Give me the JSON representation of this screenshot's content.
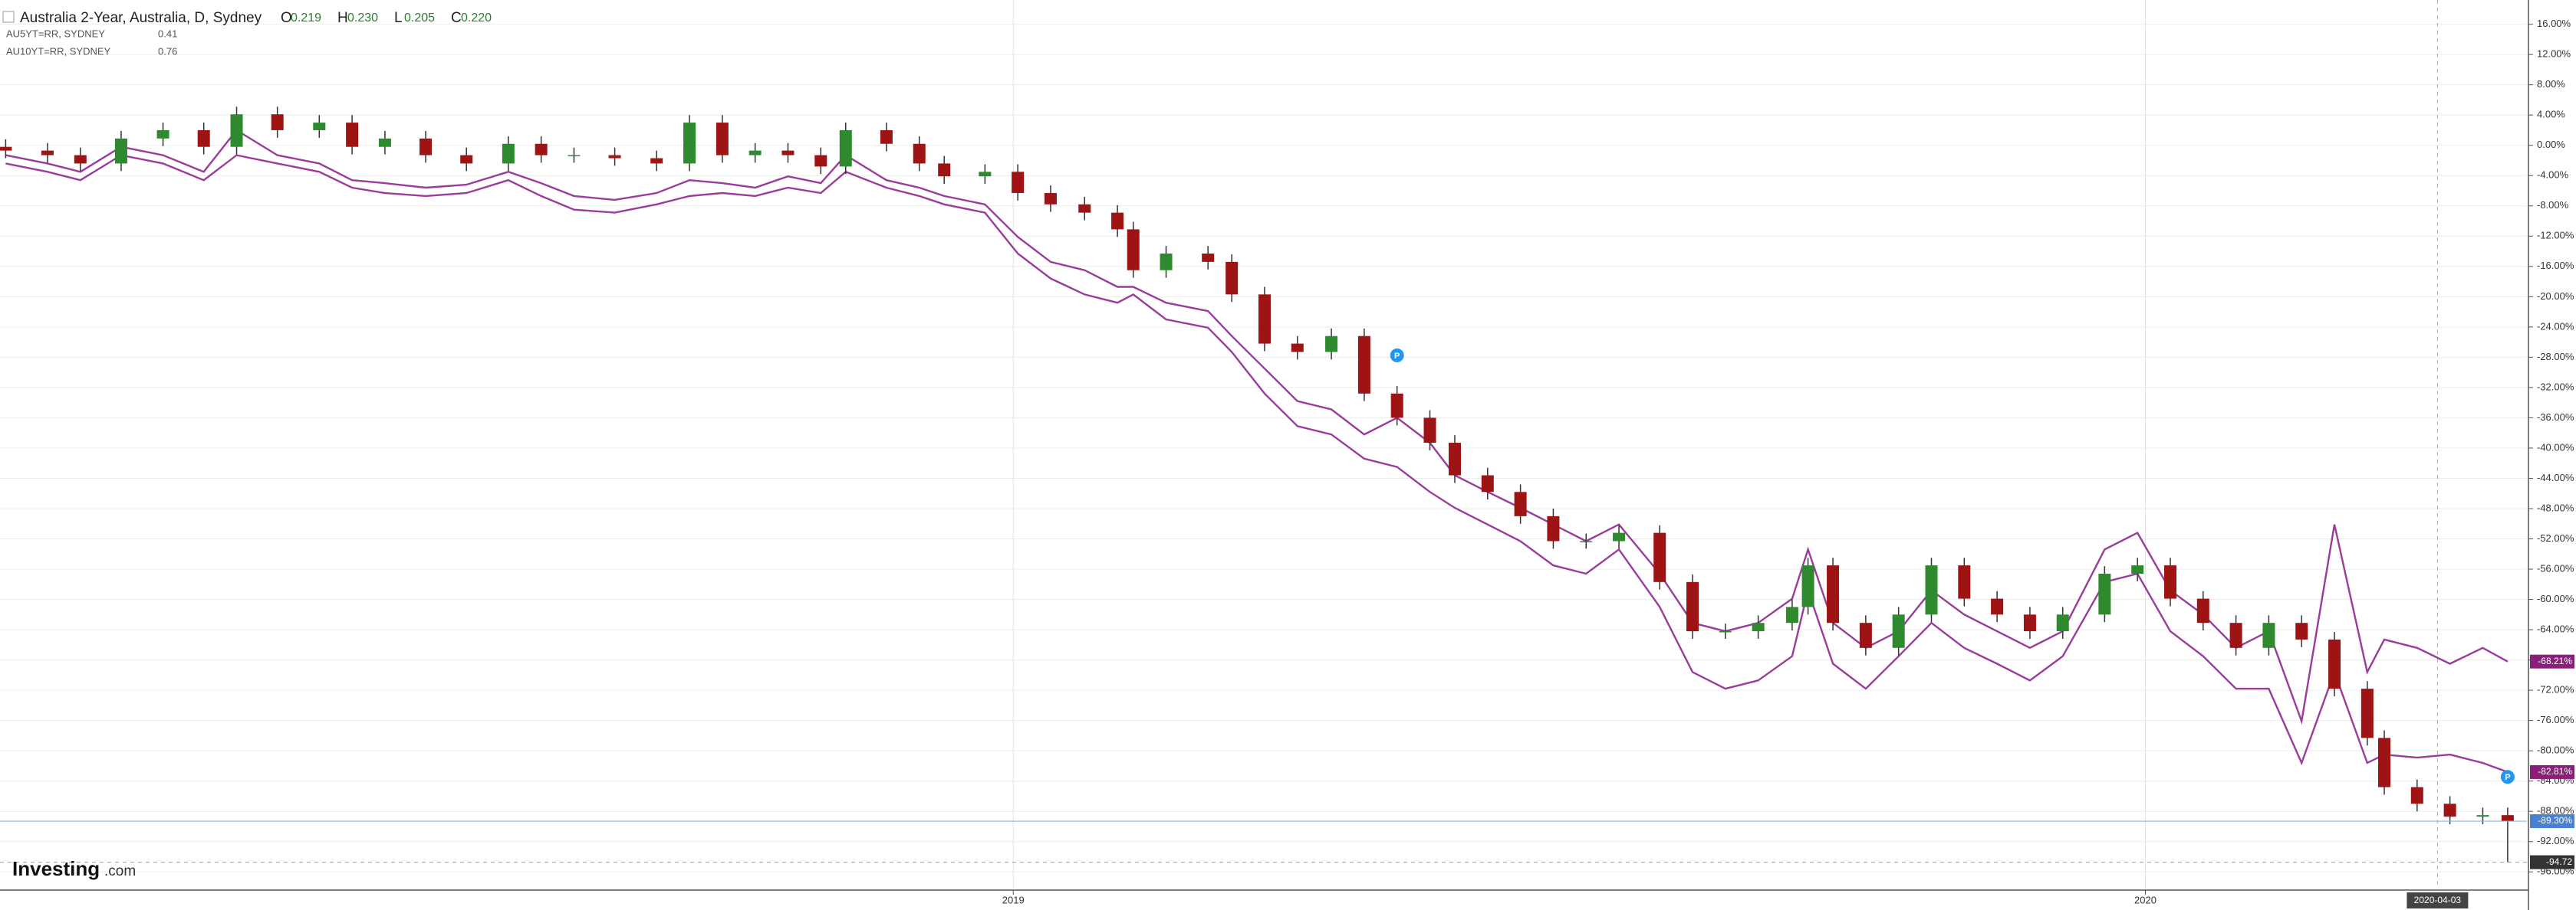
{
  "chart_data": {
    "type": "candlestick",
    "title": "Australia 2-Year, Australia, D, Sydney",
    "header_values": [
      {
        "label": "O",
        "value": 0.219
      },
      {
        "label": "H",
        "value": 0.23,
        "value_label": "0.230"
      },
      {
        "label": "L",
        "value": 0.205
      },
      {
        "label": "C",
        "value": 0.22,
        "value_label": "0.220"
      }
    ],
    "x": [
      2018.11,
      2018.147,
      2018.176,
      2018.212,
      2018.249,
      2018.285,
      2018.314,
      2018.35,
      2018.387,
      2018.416,
      2018.445,
      2018.481,
      2018.517,
      2018.554,
      2018.583,
      2018.612,
      2018.648,
      2018.685,
      2018.714,
      2018.743,
      2018.772,
      2018.801,
      2018.83,
      2018.852,
      2018.888,
      2018.917,
      2018.939,
      2018.975,
      2019.004,
      2019.033,
      2019.063,
      2019.092,
      2019.106,
      2019.135,
      2019.172,
      2019.193,
      2019.222,
      2019.251,
      2019.281,
      2019.31,
      2019.339,
      2019.368,
      2019.39,
      2019.419,
      2019.448,
      2019.477,
      2019.506,
      2019.535,
      2019.571,
      2019.6,
      2019.629,
      2019.658,
      2019.688,
      2019.702,
      2019.724,
      2019.753,
      2019.782,
      2019.811,
      2019.84,
      2019.869,
      2019.898,
      2019.927,
      2019.964,
      2019.993,
      2020.022,
      2020.051,
      2020.08,
      2020.109,
      2020.138,
      2020.167,
      2020.196,
      2020.211,
      2020.24,
      2020.269,
      2020.298,
      2020.32
    ],
    "open": [
      -0.2,
      -0.7,
      -1.3,
      -2.4,
      0.9,
      2.0,
      -0.2,
      4.1,
      2.0,
      3.0,
      -0.2,
      0.9,
      -1.3,
      -2.4,
      0.2,
      -1.3,
      -1.3,
      -1.7,
      -2.4,
      3.0,
      -1.3,
      -0.7,
      -1.3,
      -2.8,
      2.0,
      0.2,
      -2.4,
      -4.1,
      -3.5,
      -6.3,
      -7.8,
      -8.9,
      -11.1,
      -16.5,
      -14.3,
      -15.4,
      -19.7,
      -26.2,
      -27.3,
      -25.2,
      -32.8,
      -36.0,
      -39.3,
      -43.6,
      -45.8,
      -49.0,
      -52.3,
      -52.3,
      -51.2,
      -57.7,
      -64.2,
      -64.2,
      -63.1,
      -61.0,
      -55.5,
      -63.1,
      -66.4,
      -62.0,
      -55.5,
      -59.9,
      -62.0,
      -64.2,
      -62.0,
      -56.6,
      -55.5,
      -59.9,
      -63.1,
      -66.4,
      -63.1,
      -65.3,
      -71.8,
      -78.3,
      -84.8,
      -87.0,
      -88.7,
      -88.5
    ],
    "high": [
      0.8,
      0.3,
      -0.3,
      1.9,
      3.0,
      3.0,
      5.1,
      5.1,
      4.0,
      4.0,
      1.9,
      1.9,
      -0.3,
      1.2,
      1.2,
      -0.3,
      -0.3,
      -0.7,
      4.0,
      4.0,
      0.3,
      0.3,
      -0.3,
      3.0,
      3.0,
      1.2,
      -1.4,
      -2.5,
      -2.5,
      -5.3,
      -6.8,
      -7.9,
      -10.1,
      -13.3,
      -13.3,
      -14.4,
      -18.7,
      -25.2,
      -24.2,
      -24.2,
      -31.8,
      -35.0,
      -38.3,
      -42.6,
      -44.8,
      -48.0,
      -51.3,
      -50.2,
      -50.2,
      -56.7,
      -63.2,
      -62.1,
      -60.0,
      -54.5,
      -54.5,
      -62.1,
      -61.0,
      -54.5,
      -54.5,
      -58.9,
      -61.0,
      -61.0,
      -55.6,
      -54.5,
      -54.5,
      -58.9,
      -62.1,
      -62.1,
      -62.1,
      -64.3,
      -70.8,
      -77.3,
      -83.8,
      -86.0,
      -87.5,
      -87.5
    ],
    "low": [
      -1.7,
      -2.3,
      -3.4,
      -3.4,
      -0.1,
      -1.2,
      -1.2,
      1.0,
      1.0,
      -1.2,
      -1.2,
      -2.3,
      -3.4,
      -3.4,
      -2.3,
      -2.3,
      -2.7,
      -3.4,
      -3.4,
      -2.3,
      -2.3,
      -2.3,
      -3.8,
      -3.8,
      -0.8,
      -3.4,
      -5.1,
      -5.1,
      -7.3,
      -8.8,
      -9.9,
      -12.1,
      -17.5,
      -17.5,
      -16.4,
      -20.7,
      -27.2,
      -28.3,
      -28.3,
      -33.8,
      -37.0,
      -40.3,
      -44.6,
      -46.8,
      -50.0,
      -53.3,
      -53.3,
      -53.3,
      -58.7,
      -65.2,
      -65.2,
      -65.2,
      -64.1,
      -62.0,
      -64.1,
      -67.4,
      -67.4,
      -63.0,
      -60.9,
      -63.0,
      -65.2,
      -65.2,
      -63.0,
      -57.6,
      -60.9,
      -64.1,
      -67.4,
      -67.4,
      -66.3,
      -72.8,
      -79.3,
      -85.8,
      -88.0,
      -89.7,
      -89.7,
      -94.72
    ],
    "close": [
      -0.7,
      -1.3,
      -2.4,
      0.9,
      2.0,
      -0.2,
      4.1,
      2.0,
      3.0,
      -0.2,
      0.9,
      -1.3,
      -2.4,
      0.2,
      -1.3,
      -1.3,
      -1.7,
      -2.4,
      3.0,
      -1.3,
      -0.7,
      -1.3,
      -2.8,
      2.0,
      0.2,
      -2.4,
      -4.1,
      -3.5,
      -6.3,
      -7.8,
      -8.9,
      -11.1,
      -16.5,
      -14.3,
      -15.4,
      -19.7,
      -26.2,
      -27.3,
      -25.2,
      -32.8,
      -36.0,
      -39.3,
      -43.6,
      -45.8,
      -49.0,
      -52.3,
      -52.3,
      -51.2,
      -57.7,
      -64.2,
      -64.2,
      -63.1,
      -61.0,
      -55.5,
      -63.1,
      -66.4,
      -62.0,
      -55.5,
      -59.9,
      -62.0,
      -64.2,
      -62.0,
      -56.6,
      -55.5,
      -59.9,
      -63.1,
      -66.4,
      -63.1,
      -65.3,
      -71.8,
      -78.3,
      -84.8,
      -87.0,
      -88.7,
      -88.5,
      -89.3
    ],
    "up_color": "#2f8a2f",
    "down_color": "#9e1414",
    "last_label": "-89.30%",
    "last_color": "#4a80d0",
    "comparisons": [
      {
        "name": "AU5YT=RR, SYDNEY",
        "legend_value": 0.41,
        "color": "#9a3c9c",
        "last_label": "-82.81%",
        "values": [
          -2.4,
          -3.5,
          -4.6,
          -1.3,
          -2.4,
          -4.6,
          -1.3,
          -2.4,
          -3.5,
          -5.6,
          -6.3,
          -6.7,
          -6.3,
          -4.6,
          -6.7,
          -8.5,
          -8.9,
          -7.8,
          -6.7,
          -6.3,
          -6.7,
          -5.6,
          -6.3,
          -3.5,
          -5.6,
          -6.7,
          -7.8,
          -8.9,
          -14.3,
          -17.6,
          -19.7,
          -20.8,
          -19.7,
          -23.0,
          -24.1,
          -27.3,
          -32.8,
          -37.1,
          -38.2,
          -41.4,
          -42.5,
          -45.8,
          -47.9,
          -50.1,
          -52.3,
          -55.5,
          -56.6,
          -53.4,
          -61.0,
          -69.6,
          -71.8,
          -70.7,
          -67.5,
          -58.8,
          -68.5,
          -71.8,
          -67.5,
          -63.1,
          -66.4,
          -68.5,
          -70.7,
          -67.5,
          -57.7,
          -56.6,
          -64.2,
          -67.5,
          -71.8,
          -71.8,
          -81.6,
          -69.6,
          -81.6,
          -80.5,
          -80.9,
          -80.5,
          -81.6,
          -82.81
        ]
      },
      {
        "name": "AU10YT=RR, SYDNEY",
        "legend_value": 0.76,
        "color": "#9a3c9c",
        "last_label": "-68.21%",
        "values": [
          -1.3,
          -2.4,
          -3.5,
          -0.2,
          -1.3,
          -3.5,
          2.0,
          -1.3,
          -2.4,
          -4.6,
          -5.0,
          -5.6,
          -5.2,
          -3.5,
          -5.0,
          -6.7,
          -7.2,
          -6.3,
          -4.6,
          -5.0,
          -5.6,
          -4.1,
          -5.0,
          -1.3,
          -4.6,
          -5.6,
          -6.7,
          -7.8,
          -12.1,
          -15.4,
          -16.5,
          -18.7,
          -18.7,
          -20.8,
          -21.9,
          -25.2,
          -29.5,
          -33.8,
          -34.9,
          -38.2,
          -36.0,
          -39.3,
          -43.6,
          -45.8,
          -47.9,
          -50.1,
          -52.3,
          -50.1,
          -56.6,
          -63.1,
          -64.2,
          -63.1,
          -59.9,
          -53.4,
          -63.1,
          -66.4,
          -64.2,
          -58.8,
          -62.0,
          -64.2,
          -66.4,
          -64.2,
          -53.4,
          -51.2,
          -58.8,
          -62.0,
          -66.4,
          -64.2,
          -76.1,
          -50.1,
          -69.6,
          -65.3,
          -66.4,
          -68.5,
          -66.4,
          -68.21
        ]
      }
    ],
    "xlim": [
      2018.105,
      2020.337
    ],
    "xticks": [
      2019,
      2020
    ],
    "ylim": [
      -98.2,
      19.2
    ],
    "yticks": [
      {
        "value": 16,
        "label": "16.00%"
      },
      {
        "value": 12,
        "label": "12.00%"
      },
      {
        "value": 8,
        "label": "8.00%"
      },
      {
        "value": 4,
        "label": "4.00%"
      },
      {
        "value": 0,
        "label": "0.00%"
      },
      {
        "value": -4,
        "label": "-4.00%"
      },
      {
        "value": -8,
        "label": "-8.00%"
      },
      {
        "value": -12,
        "label": "-12.00%"
      },
      {
        "value": -16,
        "label": "-16.00%"
      },
      {
        "value": -20,
        "label": "-20.00%"
      },
      {
        "value": -24,
        "label": "-24.00%"
      },
      {
        "value": -28,
        "label": "-28.00%"
      },
      {
        "value": -32,
        "label": "-32.00%"
      },
      {
        "value": -36,
        "label": "-36.00%"
      },
      {
        "value": -40,
        "label": "-40.00%"
      },
      {
        "value": -44,
        "label": "-44.00%"
      },
      {
        "value": -48,
        "label": "-48.00%"
      },
      {
        "value": -52,
        "label": "-52.00%"
      },
      {
        "value": -56,
        "label": "-56.00%"
      },
      {
        "value": -60,
        "label": "-60.00%"
      },
      {
        "value": -64,
        "label": "-64.00%"
      },
      {
        "value": -68,
        "label": "-68.00%"
      },
      {
        "value": -72,
        "label": "-72.00%"
      },
      {
        "value": -76,
        "label": "-76.00%"
      },
      {
        "value": -80,
        "label": "-80.00%"
      },
      {
        "value": -84,
        "label": "-84.00%"
      },
      {
        "value": -88,
        "label": "-88.00%"
      },
      {
        "value": -92,
        "label": "-92.00%"
      },
      {
        "value": -96,
        "label": "-96.00%"
      }
    ],
    "grid": true,
    "crosshair": {
      "x": 2020.258,
      "label": "2020-04-03"
    },
    "low_marker": {
      "value": -94.72,
      "label": "-94.72"
    },
    "events": [
      {
        "x": 2019.339,
        "label": "P"
      },
      {
        "x": 2020.32,
        "label": "P"
      }
    ]
  },
  "branding": {
    "name": "Investing",
    "suffix": ".com"
  }
}
